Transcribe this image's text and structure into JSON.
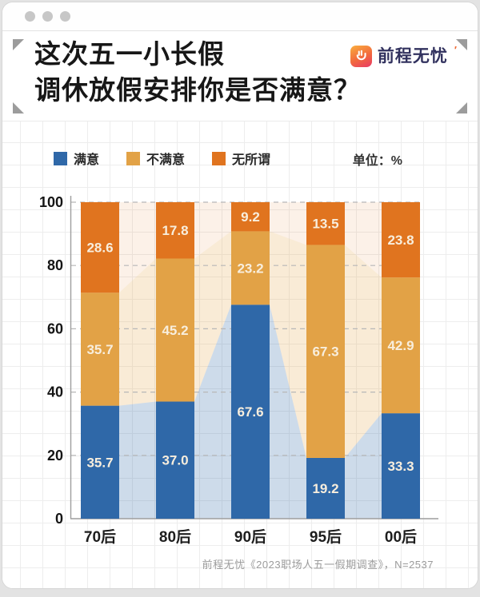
{
  "header": {
    "title_line1": "这次五一小长假",
    "title_line2": "调休放假安排你是否满意？",
    "logo": {
      "text": "前程无忧",
      "mark": "′"
    }
  },
  "legend": {
    "items": [
      {
        "label": "满意",
        "color": "#2f68a8"
      },
      {
        "label": "不满意",
        "color": "#e2a246"
      },
      {
        "label": "无所谓",
        "color": "#e0741f"
      }
    ],
    "unit_label": "单位：%"
  },
  "chart_data": {
    "type": "bar",
    "stacked": true,
    "unit": "%",
    "title": "这次五一小长假调休放假安排你是否满意？",
    "categories": [
      "70后",
      "80后",
      "90后",
      "95后",
      "00后"
    ],
    "series": [
      {
        "name": "满意",
        "color": "#2f68a8",
        "area_tint": "rgba(47,104,168,0.24)",
        "values": [
          35.7,
          37.0,
          67.6,
          19.2,
          33.3
        ],
        "value_labels": [
          "35.7",
          "37.0",
          "67.6",
          "19.2",
          "33.3"
        ]
      },
      {
        "name": "不满意",
        "color": "#e2a246",
        "area_tint": "rgba(226,162,70,0.22)",
        "values": [
          35.7,
          45.2,
          23.2,
          67.3,
          42.9
        ],
        "value_labels": [
          "35.7",
          "45.2",
          "23.2",
          "67.3",
          "42.9"
        ]
      },
      {
        "name": "无所谓",
        "color": "#e0741f",
        "area_tint": "rgba(224,116,31,0.10)",
        "values": [
          28.6,
          17.8,
          9.2,
          13.5,
          23.8
        ],
        "value_labels": [
          "28.6",
          "17.8",
          "9.2",
          "13.5",
          "23.8"
        ]
      }
    ],
    "ylim": [
      0,
      100
    ],
    "yticks": [
      0,
      20,
      40,
      60,
      80,
      100
    ],
    "grid": "dashed-horizontal",
    "legend_position": "top",
    "background_area": "pale stacked-area silhouette behind bars",
    "value_label_color": "#f8eedd"
  },
  "footer": {
    "source": "前程无忧《2023职场人五一假期调查》，N=2537"
  }
}
